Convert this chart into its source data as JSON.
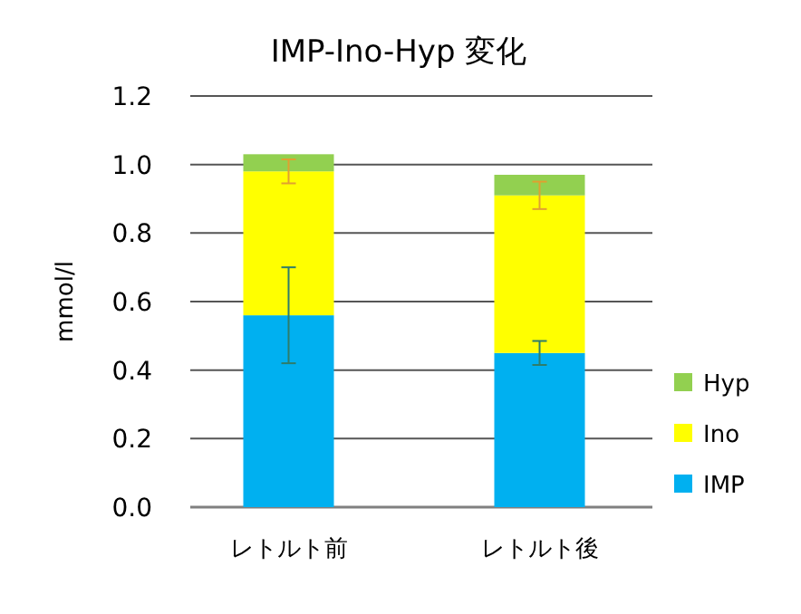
{
  "chart_data": {
    "type": "bar",
    "title": "IMP-Ino-Hyp 変化",
    "ylabel": "mmol/l",
    "categories": [
      "レトルト前",
      "レトルト後"
    ],
    "series": [
      {
        "name": "IMP",
        "color": "#00b0f0",
        "values": [
          0.56,
          0.45
        ],
        "errors": [
          0.14,
          0.035
        ]
      },
      {
        "name": "Ino",
        "color": "#ffff00",
        "values": [
          0.42,
          0.46
        ],
        "errors": [
          0.035,
          0.04
        ]
      },
      {
        "name": "Hyp",
        "color": "#92d050",
        "values": [
          0.05,
          0.06
        ]
      }
    ],
    "stacked": true,
    "ylim": [
      0,
      1.2
    ],
    "yticks": [
      {
        "value": 0,
        "label": "0.0"
      },
      {
        "value": 0.2,
        "label": "0.2"
      },
      {
        "value": 0.4,
        "label": "0.4"
      },
      {
        "value": 0.6,
        "label": "0.6"
      },
      {
        "value": 0.8,
        "label": "0.8"
      },
      {
        "value": 1,
        "label": "1.0"
      },
      {
        "value": 1.2,
        "label": "1.2"
      }
    ],
    "grid": "y",
    "legend": "right"
  }
}
